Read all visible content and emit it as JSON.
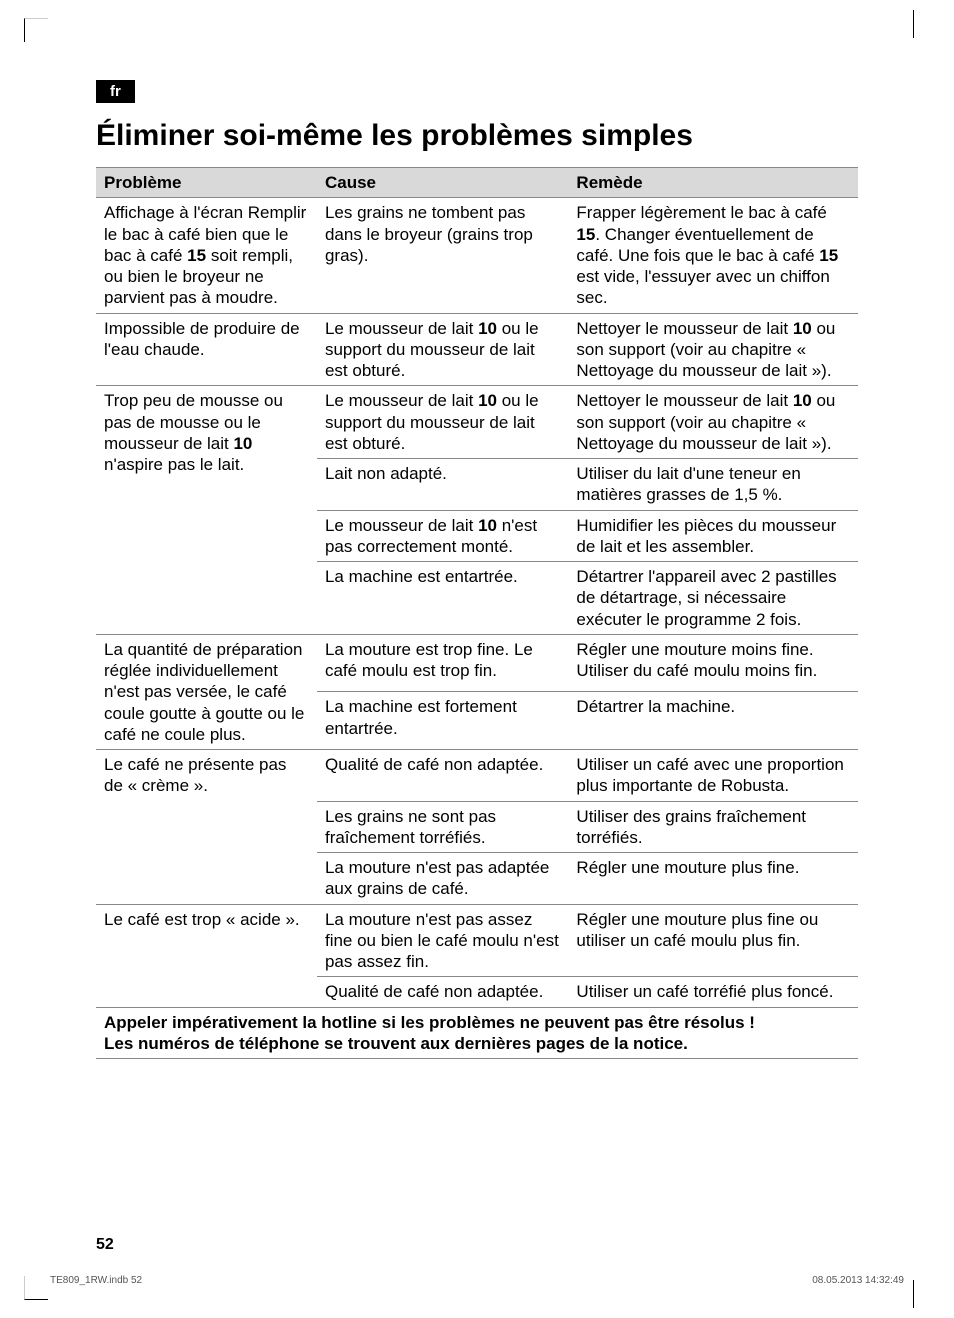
{
  "lang_badge": "fr",
  "title": "Éliminer soi-même les problèmes simples",
  "headers": {
    "problem": "Problème",
    "cause": "Cause",
    "remedy": "Remède"
  },
  "rows": [
    {
      "problem_html": "Affichage à l'écran Remplir le bac à café bien que le bac à café <b>15</b> soit rempli, ou bien le broyeur ne parvient pas à moudre.",
      "cause": "Les grains ne tombent pas dans le broyeur (grains trop gras).",
      "remedy_html": "Frapper légèrement le bac à café <b>15</b>. Changer éventuelle­ment de café. Une fois que le bac à café <b>15</b> est vide, l'es­suyer avec un chiffon sec."
    },
    {
      "problem": "Impossible de produire de l'eau chaude.",
      "cause_html": "Le mousseur de lait <b>10</b> ou le support du mousseur de lait est obturé.",
      "remedy_html": "Nettoyer le mousseur de lait <b>10</b> ou son support (voir au cha­pitre « Nettoyage du mousseur de lait »)."
    },
    {
      "problem_html": "Trop peu de mousse ou pas de mousse ou le mousseur de lait <b>10</b> n'aspire pas le lait.",
      "problem_rowspan": 4,
      "subrows": [
        {
          "cause_html": "Le mousseur de lait <b>10</b> ou le support du mousseur de lait est obturé.",
          "remedy_html": "Nettoyer le mousseur de lait <b>10</b> ou son support (voir au cha­pitre « Nettoyage du mousseur de lait »)."
        },
        {
          "cause": "Lait non adapté.",
          "remedy": "Utiliser du lait d'une teneur en matières grasses de 1,5 %."
        },
        {
          "cause_html": "Le mousseur de lait <b>10</b> n'est pas correctement monté.",
          "remedy": "Humidifier les pièces du mous­seur de lait et les assembler."
        },
        {
          "cause": "La machine est entartrée.",
          "remedy": "Détartrer l'appareil avec 2 pas­tilles de détartrage, si néces­saire exécuter le programme 2 fois."
        }
      ]
    },
    {
      "problem": "La quantité de prépara­tion réglée individuelle­ment n'est pas versée, le café coule goutte à goutte ou le café ne coule plus.",
      "problem_rowspan": 2,
      "subrows": [
        {
          "cause": "La mouture est trop fine. Le café moulu est trop fin.",
          "remedy": "Régler une mouture moins fine. Utiliser du café moulu moins fin."
        },
        {
          "cause": "La machine est fortement entartrée.",
          "remedy": "Détartrer la machine."
        }
      ]
    },
    {
      "problem": "Le café ne présente pas de « crème ».",
      "problem_rowspan": 3,
      "subrows": [
        {
          "cause": "Qualité de café non adaptée.",
          "remedy": "Utiliser un café avec une proportion plus importante de Robusta."
        },
        {
          "cause": "Les grains ne sont pas fraîchement torréfiés.",
          "remedy": "Utiliser des grains fraîchement torréfiés."
        },
        {
          "cause": "La mouture n'est pas adaptée aux grains de café.",
          "remedy": "Régler une mouture plus fine."
        }
      ]
    },
    {
      "problem": "Le café est trop « acide ».",
      "problem_rowspan": 2,
      "subrows": [
        {
          "cause": "La mouture n'est pas assez fine ou bien le café moulu n'est pas assez fin.",
          "remedy": "Régler une mouture plus fine ou utiliser un café moulu plus fin."
        },
        {
          "cause": "Qualité de café non adaptée.",
          "remedy": "Utiliser un café torréfié plus foncé."
        }
      ]
    }
  ],
  "footer_note_line1": "Appeler impérativement la hotline si les problèmes ne peuvent pas être résolus !",
  "footer_note_line2": "Les numéros de téléphone se trouvent aux dernières pages de la notice.",
  "page_number": "52",
  "print_file": "TE809_1RW.indb   52",
  "print_date": "08.05.2013   14:32:49",
  "colors": {
    "header_bg": "#d9d9d9",
    "border": "#888888",
    "text": "#000000",
    "badge_bg": "#000000",
    "badge_fg": "#ffffff"
  }
}
